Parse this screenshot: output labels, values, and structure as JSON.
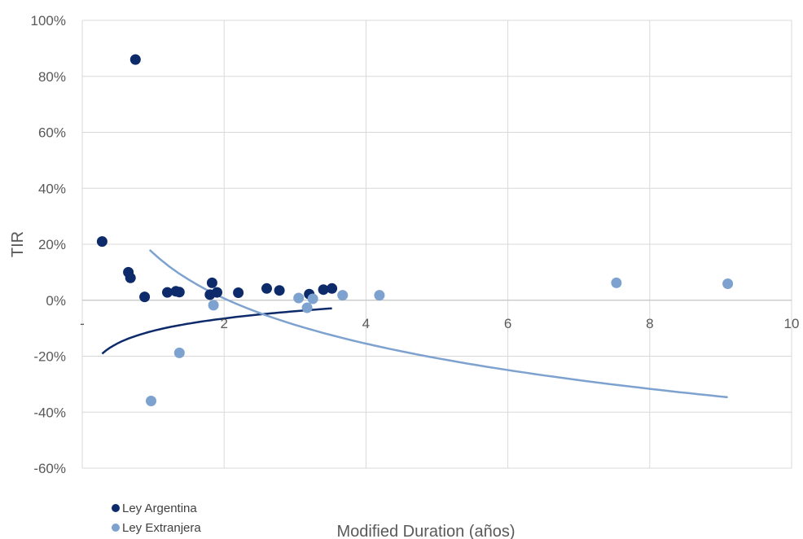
{
  "chart_data": {
    "type": "scatter",
    "xlabel": "Modified Duration (años)",
    "ylabel": "TIR",
    "xlim": [
      0,
      10
    ],
    "ylim": [
      -60,
      100
    ],
    "x_ticks": [
      0,
      2,
      4,
      6,
      8,
      10
    ],
    "x_tick_labels": [
      "-",
      "2",
      "4",
      "6",
      "8",
      "10"
    ],
    "y_ticks": [
      -60,
      -40,
      -20,
      0,
      20,
      40,
      60,
      80,
      100
    ],
    "y_tick_labels": [
      "-60%",
      "-40%",
      "-20%",
      "0%",
      "20%",
      "40%",
      "60%",
      "80%",
      "100%"
    ],
    "grid": true,
    "legend_position": "bottom-left",
    "series": [
      {
        "name": "Ley Argentina",
        "color": "#0d2a6b",
        "points": [
          [
            0.28,
            21
          ],
          [
            0.75,
            86
          ],
          [
            0.65,
            10
          ],
          [
            0.68,
            8
          ],
          [
            0.88,
            1.2
          ],
          [
            1.2,
            2.8
          ],
          [
            1.32,
            3.2
          ],
          [
            1.37,
            2.9
          ],
          [
            1.8,
            2
          ],
          [
            1.83,
            6.2
          ],
          [
            1.9,
            2.8
          ],
          [
            2.2,
            2.7
          ],
          [
            2.6,
            4.2
          ],
          [
            2.78,
            3.5
          ],
          [
            3.2,
            2.2
          ],
          [
            3.4,
            3.8
          ],
          [
            3.52,
            4.2
          ]
        ],
        "trend": {
          "type": "log",
          "a": 6.4,
          "b": -10.95,
          "x_range": [
            0.28,
            3.52
          ]
        }
      },
      {
        "name": "Ley Extranjera",
        "color": "#7ea2cf",
        "points": [
          [
            0.97,
            -36
          ],
          [
            1.37,
            -18.8
          ],
          [
            1.85,
            -1.8
          ],
          [
            3.05,
            0.8
          ],
          [
            3.17,
            -2.7
          ],
          [
            3.25,
            0.5
          ],
          [
            3.67,
            1.8
          ],
          [
            4.19,
            1.8
          ],
          [
            7.53,
            6.2
          ],
          [
            9.1,
            5.9
          ]
        ],
        "trend": {
          "type": "log",
          "a": -23.3,
          "b": 16.8,
          "x_range": [
            0.95,
            9.1
          ]
        }
      }
    ]
  }
}
